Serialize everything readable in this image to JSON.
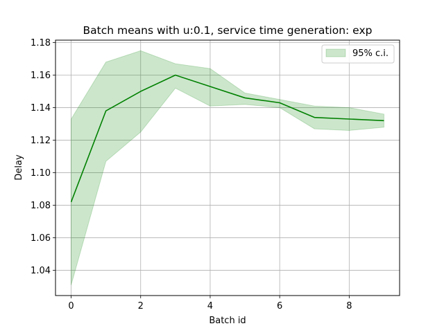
{
  "chart_data": {
    "type": "line",
    "title": "Batch means with u:0.1, service time generation: exp",
    "xlabel": "Batch id",
    "ylabel": "Delay",
    "xlim": [
      -0.45,
      9.45
    ],
    "ylim": [
      1.0245,
      1.1815
    ],
    "x_ticks": [
      0,
      2,
      4,
      6,
      8
    ],
    "x_tick_labels": [
      "0",
      "2",
      "4",
      "6",
      "8"
    ],
    "y_ticks": [
      1.04,
      1.06,
      1.08,
      1.1,
      1.12,
      1.14,
      1.16,
      1.18
    ],
    "y_tick_labels": [
      "1.04",
      "1.06",
      "1.08",
      "1.10",
      "1.12",
      "1.14",
      "1.16",
      "1.18"
    ],
    "grid": true,
    "legend": {
      "placement": "top-right",
      "entries": [
        {
          "label": "95% c.i.",
          "kind": "band"
        }
      ]
    },
    "x": [
      0,
      1,
      2,
      3,
      4,
      5,
      6,
      7,
      8,
      9
    ],
    "series": [
      {
        "kind": "line",
        "color": "#008000",
        "values": [
          1.082,
          1.138,
          1.15,
          1.16,
          1.153,
          1.146,
          1.143,
          1.134,
          1.133,
          1.132
        ]
      },
      {
        "name": "95% c.i.",
        "kind": "band",
        "color": "#008000",
        "opacity": 0.2,
        "lower": [
          1.031,
          1.107,
          1.125,
          1.152,
          1.141,
          1.142,
          1.14,
          1.127,
          1.126,
          1.128
        ],
        "upper": [
          1.133,
          1.168,
          1.175,
          1.167,
          1.164,
          1.149,
          1.145,
          1.141,
          1.14,
          1.136
        ]
      }
    ]
  }
}
